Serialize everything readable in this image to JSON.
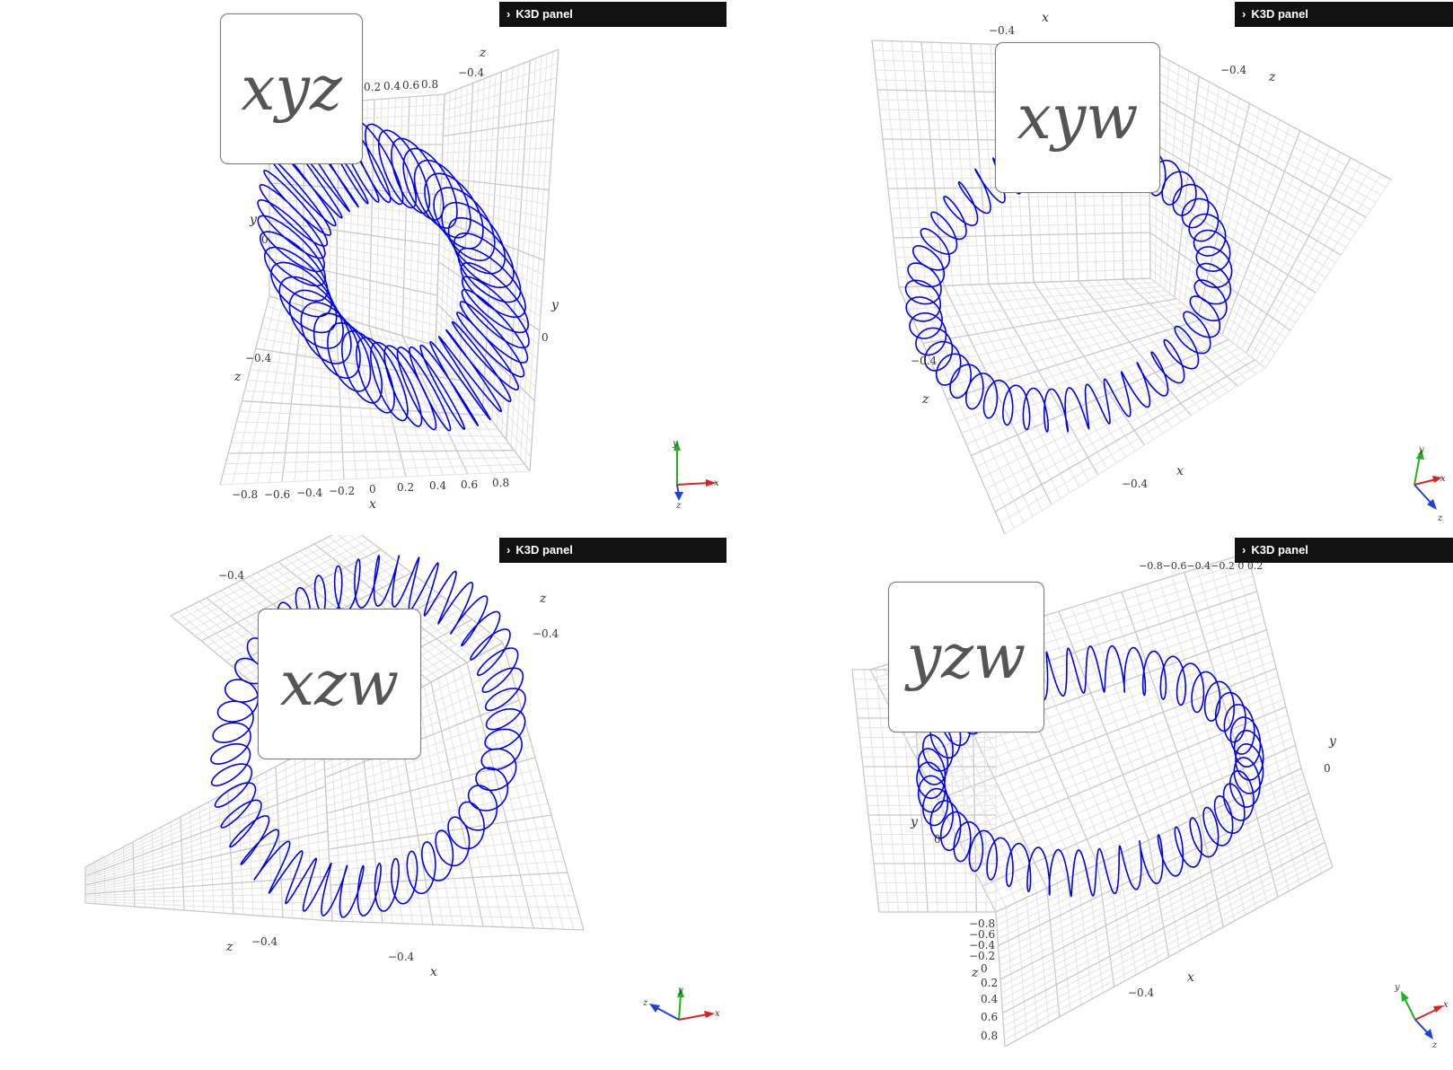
{
  "panel_label": "K3D panel",
  "curve_color": "#0000ee",
  "viewports": [
    {
      "plot_label": "xyz",
      "ticks": {
        "x": [
          "−0.8",
          "−0.6",
          "−0.4",
          "−0.2",
          "0",
          "0.2",
          "0.4",
          "0.6",
          "0.8"
        ],
        "top": [
          "0.2",
          "0.4",
          "0.6",
          "0.8"
        ],
        "z_top": "−0.4",
        "z_left": "−0.4",
        "y_left": "0",
        "y_right": "0"
      },
      "axis_names": {
        "x": "x",
        "y_left": "y",
        "y_right": "y",
        "z_top": "z",
        "z_left": "z"
      },
      "triad": [
        "y",
        "x",
        "z"
      ]
    },
    {
      "plot_label": "xyw",
      "ticks": {
        "x_top": "−0.4",
        "z_right": "−0.4",
        "z_left": "−0.4",
        "x_bottom": "−0.4"
      },
      "axis_names": {
        "x_top": "x",
        "z_right": "z",
        "z_left": "z",
        "x_bottom": "x"
      },
      "triad": [
        "y",
        "x",
        "z"
      ]
    },
    {
      "plot_label": "xzw",
      "ticks": {
        "top_left": "−0.4",
        "z_right": "−0.4",
        "z_bottom": "−0.4",
        "x_bottom": "−0.4"
      },
      "axis_names": {
        "z_right": "z",
        "z_bottom": "z",
        "x_bottom": "x"
      },
      "triad": [
        "y",
        "z",
        "x"
      ]
    },
    {
      "plot_label": "yzw",
      "ticks": {
        "top_cluster": "−0.8−0.6−0.4−0.2 0 0.2",
        "y_right": "0",
        "y_left": "0",
        "z_col": [
          "−0.8",
          "−0.6",
          "−0.4",
          "−0.2",
          "0",
          "0.2",
          "0.4",
          "0.6",
          "0.8"
        ],
        "x_bottom": "−0.4"
      },
      "axis_names": {
        "y_right": "y",
        "y_left": "y",
        "z": "z",
        "x": "x"
      },
      "triad": [
        "y",
        "x",
        "z"
      ]
    }
  ]
}
